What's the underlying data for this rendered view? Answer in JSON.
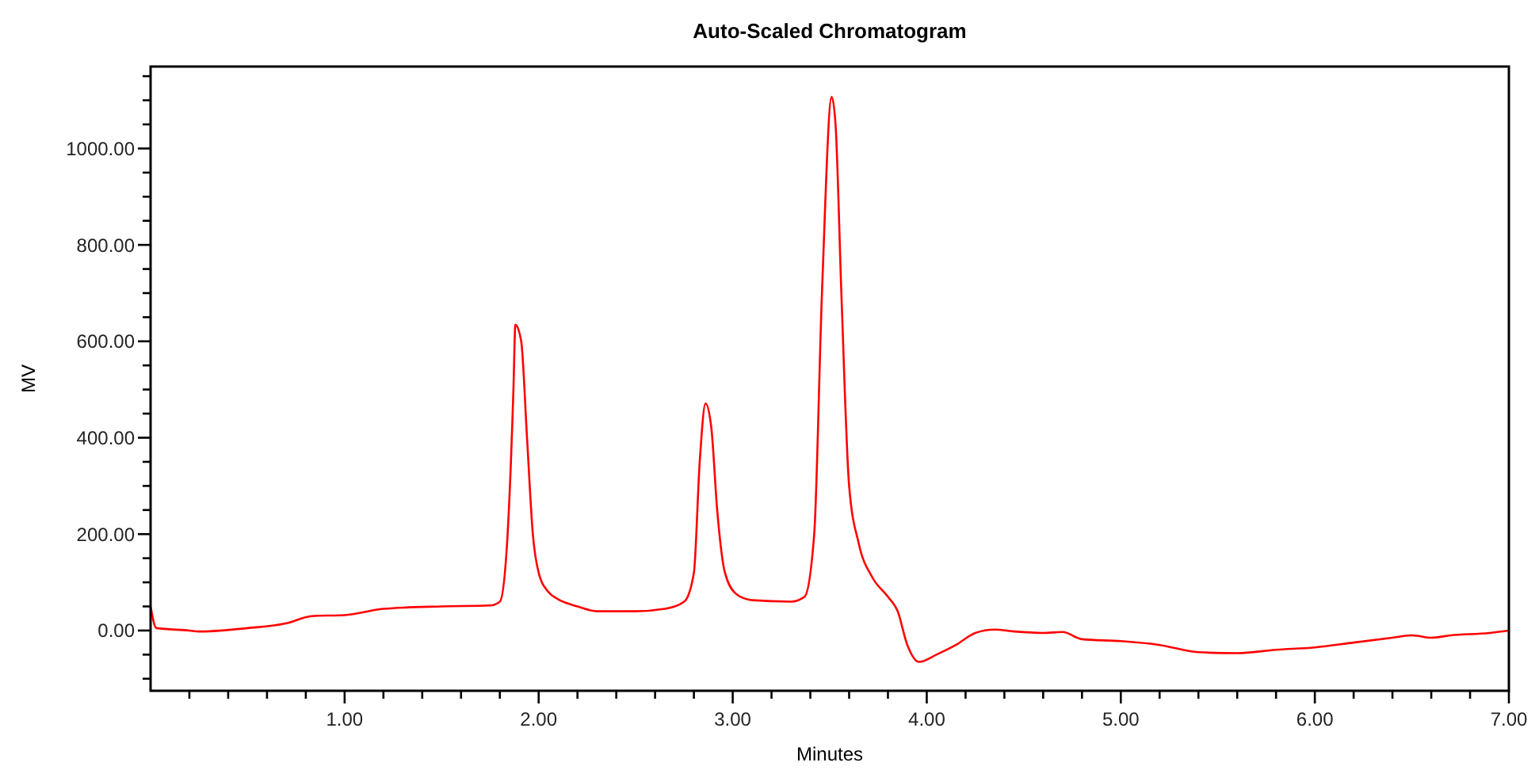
{
  "chart_data": {
    "type": "line",
    "title": "Auto-Scaled Chromatogram",
    "xlabel": "Minutes",
    "ylabel": "MV",
    "xlim": [
      0,
      7
    ],
    "ylim": [
      -125,
      1170
    ],
    "xticks": [
      {
        "value": 0.2,
        "label": null
      },
      {
        "value": 0.4,
        "label": null
      },
      {
        "value": 0.6,
        "label": null
      },
      {
        "value": 0.8,
        "label": null
      },
      {
        "value": 1,
        "label": "1.00"
      },
      {
        "value": 1.2,
        "label": null
      },
      {
        "value": 1.4,
        "label": null
      },
      {
        "value": 1.6,
        "label": null
      },
      {
        "value": 1.8,
        "label": null
      },
      {
        "value": 2,
        "label": "2.00"
      },
      {
        "value": 2.2,
        "label": null
      },
      {
        "value": 2.4,
        "label": null
      },
      {
        "value": 2.6,
        "label": null
      },
      {
        "value": 2.8,
        "label": null
      },
      {
        "value": 3,
        "label": "3.00"
      },
      {
        "value": 3.2,
        "label": null
      },
      {
        "value": 3.4,
        "label": null
      },
      {
        "value": 3.6,
        "label": null
      },
      {
        "value": 3.8,
        "label": null
      },
      {
        "value": 4,
        "label": "4.00"
      },
      {
        "value": 4.2,
        "label": null
      },
      {
        "value": 4.4,
        "label": null
      },
      {
        "value": 4.6,
        "label": null
      },
      {
        "value": 4.8,
        "label": null
      },
      {
        "value": 5,
        "label": "5.00"
      },
      {
        "value": 5.2,
        "label": null
      },
      {
        "value": 5.4,
        "label": null
      },
      {
        "value": 5.6,
        "label": null
      },
      {
        "value": 5.8,
        "label": null
      },
      {
        "value": 6,
        "label": "6.00"
      },
      {
        "value": 6.2,
        "label": null
      },
      {
        "value": 6.4,
        "label": null
      },
      {
        "value": 6.6,
        "label": null
      },
      {
        "value": 6.8,
        "label": null
      },
      {
        "value": 7,
        "label": "7.00"
      }
    ],
    "yticks": [
      {
        "value": -100,
        "label": null
      },
      {
        "value": -50,
        "label": null
      },
      {
        "value": 0,
        "label": "0.00"
      },
      {
        "value": 50,
        "label": null
      },
      {
        "value": 100,
        "label": null
      },
      {
        "value": 150,
        "label": null
      },
      {
        "value": 200,
        "label": "200.00"
      },
      {
        "value": 250,
        "label": null
      },
      {
        "value": 300,
        "label": null
      },
      {
        "value": 350,
        "label": null
      },
      {
        "value": 400,
        "label": "400.00"
      },
      {
        "value": 450,
        "label": null
      },
      {
        "value": 500,
        "label": null
      },
      {
        "value": 550,
        "label": null
      },
      {
        "value": 600,
        "label": "600.00"
      },
      {
        "value": 650,
        "label": null
      },
      {
        "value": 700,
        "label": null
      },
      {
        "value": 750,
        "label": null
      },
      {
        "value": 800,
        "label": "800.00"
      },
      {
        "value": 850,
        "label": null
      },
      {
        "value": 900,
        "label": null
      },
      {
        "value": 950,
        "label": null
      },
      {
        "value": 1000,
        "label": "1000.00"
      },
      {
        "value": 1050,
        "label": null
      },
      {
        "value": 1100,
        "label": null
      },
      {
        "value": 1150,
        "label": null
      }
    ],
    "grid": false,
    "marker": "none",
    "line_style": "solid",
    "series": [
      {
        "color": "#ff0000",
        "x": [
          0,
          0.03,
          0.2,
          0.25,
          0.5,
          0.7,
          0.83,
          1.0,
          1.2,
          1.5,
          1.75,
          1.8,
          1.84,
          1.87,
          1.88,
          1.91,
          1.94,
          1.97,
          2.0,
          2.05,
          2.1,
          2.2,
          2.3,
          2.5,
          2.65,
          2.75,
          2.8,
          2.83,
          2.86,
          2.89,
          2.92,
          2.96,
          3.02,
          3.1,
          3.3,
          3.37,
          3.42,
          3.46,
          3.51,
          3.53,
          3.56,
          3.6,
          3.65,
          3.72,
          3.8,
          3.85,
          3.9,
          3.96,
          4.05,
          4.15,
          4.25,
          4.35,
          4.45,
          4.6,
          4.7,
          4.8,
          5.0,
          5.2,
          5.4,
          5.6,
          5.8,
          6.0,
          6.2,
          6.4,
          6.5,
          6.6,
          6.7,
          6.9,
          7.0
        ],
        "values": [
          50,
          5,
          0,
          -2,
          5,
          15,
          30,
          32,
          45,
          50,
          52,
          60,
          200,
          500,
          634,
          600,
          400,
          200,
          120,
          80,
          65,
          50,
          40,
          40,
          45,
          60,
          120,
          350,
          471,
          420,
          250,
          120,
          75,
          63,
          60,
          70,
          200,
          700,
          1107,
          1050,
          700,
          300,
          180,
          110,
          70,
          40,
          -30,
          -65,
          -50,
          -30,
          -5,
          2,
          -2,
          -5,
          -3,
          -18,
          -22,
          -30,
          -45,
          -47,
          -40,
          -35,
          -25,
          -15,
          -10,
          -15,
          -10,
          -5,
          0
        ]
      }
    ]
  }
}
